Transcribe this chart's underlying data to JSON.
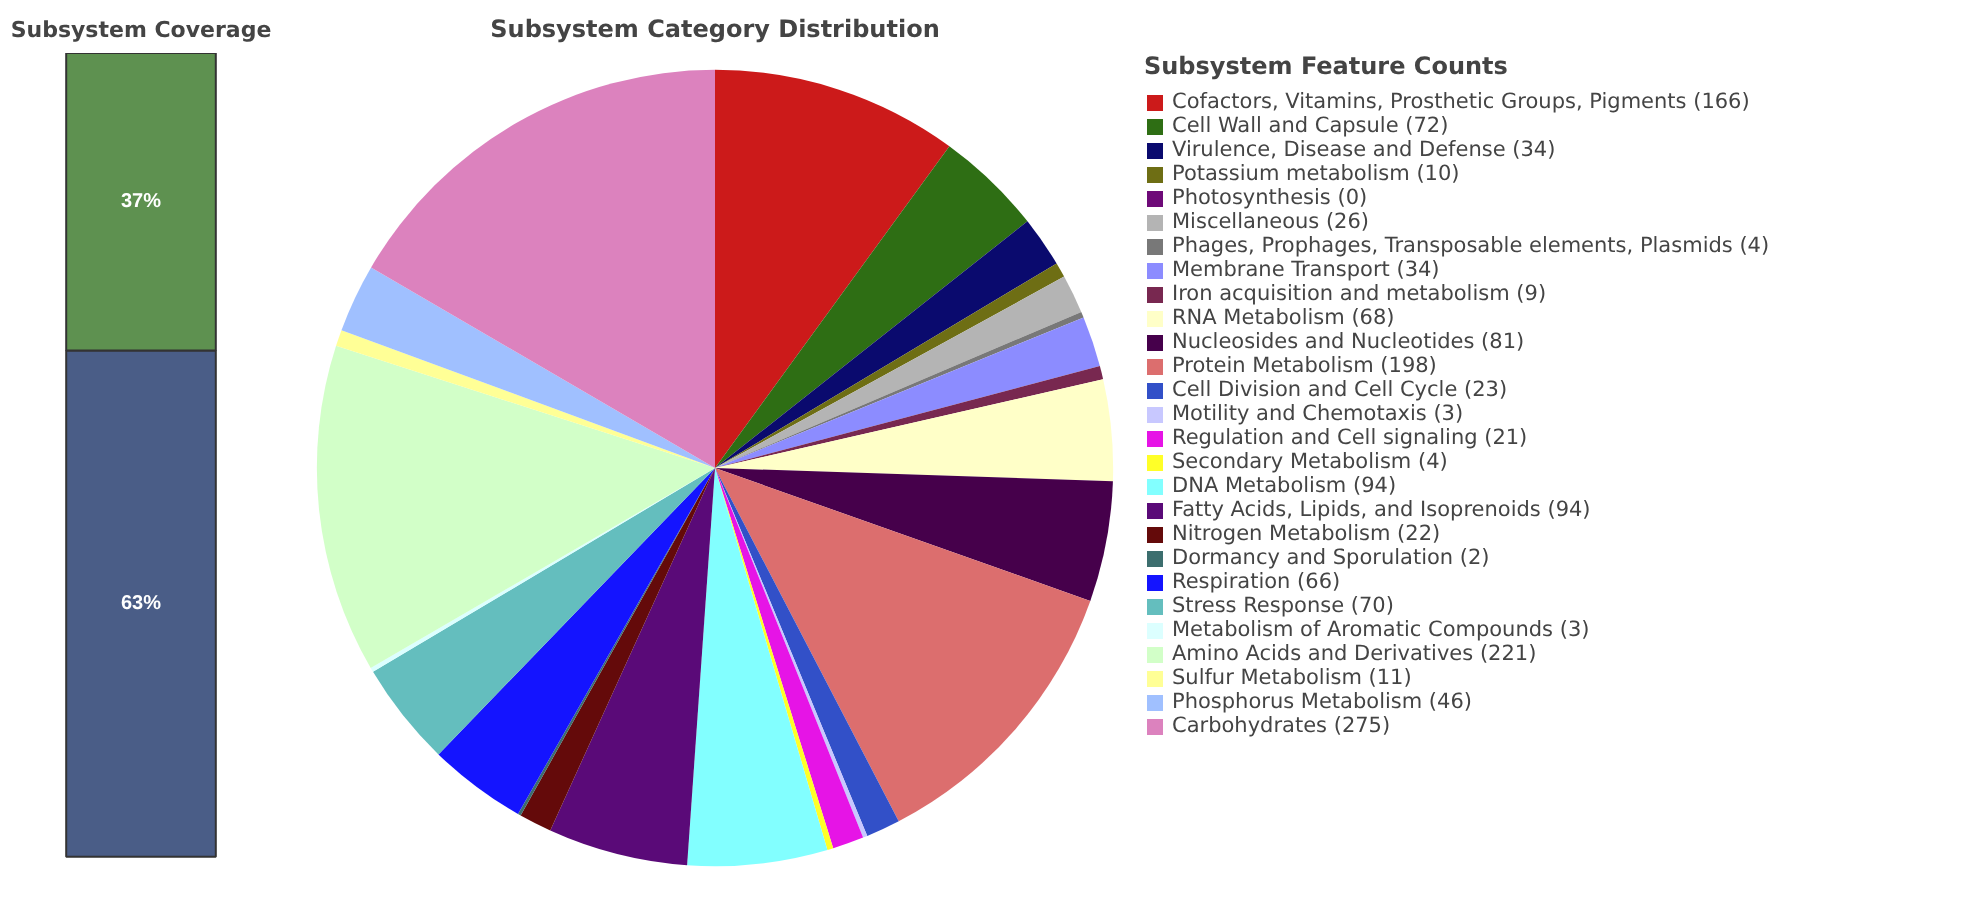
{
  "chart_data": [
    {
      "type": "bar",
      "title": "Subsystem Coverage",
      "categories": [
        null
      ],
      "stacked": true,
      "series": [
        {
          "color": "#4a5d87",
          "values": [
            63
          ],
          "value_labels": [
            "63%"
          ]
        },
        {
          "color": "#5e9150",
          "values": [
            37
          ],
          "value_labels": [
            "37%"
          ]
        }
      ]
    },
    {
      "type": "pie",
      "title": "Subsystem Category Distribution",
      "legend_title": "Subsystem Feature Counts",
      "legend": "right",
      "categories": [
        "Cofactors, Vitamins, Prosthetic Groups, Pigments (166)",
        "Cell Wall and Capsule (72)",
        "Virulence, Disease and Defense (34)",
        "Potassium metabolism (10)",
        "Photosynthesis (0)",
        "Miscellaneous (26)",
        "Phages, Prophages, Transposable elements, Plasmids (4)",
        "Membrane Transport (34)",
        "Iron acquisition and metabolism (9)",
        "RNA Metabolism (68)",
        "Nucleosides and Nucleotides (81)",
        "Protein Metabolism (198)",
        "Cell Division and Cell Cycle (23)",
        "Motility and Chemotaxis (3)",
        "Regulation and Cell signaling (21)",
        "Secondary Metabolism (4)",
        "DNA Metabolism (94)",
        "Fatty Acids, Lipids, and Isoprenoids (94)",
        "Nitrogen Metabolism (22)",
        "Dormancy and Sporulation (2)",
        "Respiration (66)",
        "Stress Response (70)",
        "Metabolism of Aromatic Compounds (3)",
        "Amino Acids and Derivatives (221)",
        "Sulfur Metabolism (11)",
        "Phosphorus Metabolism (46)",
        "Carbohydrates (275)"
      ],
      "values": [
        166,
        72,
        34,
        10,
        0,
        26,
        4,
        34,
        9,
        68,
        81,
        198,
        23,
        3,
        21,
        4,
        94,
        94,
        22,
        2,
        66,
        70,
        3,
        221,
        11,
        46,
        275
      ],
      "colors": [
        "#cc1a1a",
        "#2e6e14",
        "#0a0a6e",
        "#6e6e14",
        "#6e0a78",
        "#b4b4b4",
        "#787878",
        "#8c8cff",
        "#782850",
        "#ffffc8",
        "#46004b",
        "#dc6e6e",
        "#3250c8",
        "#c8c8ff",
        "#e614e6",
        "#ffff28",
        "#82ffff",
        "#5a0a78",
        "#640a0a",
        "#3c6e6e",
        "#1414ff",
        "#64bebe",
        "#dcffff",
        "#d2ffc8",
        "#ffff96",
        "#a0c0ff",
        "#dc82be"
      ]
    }
  ]
}
